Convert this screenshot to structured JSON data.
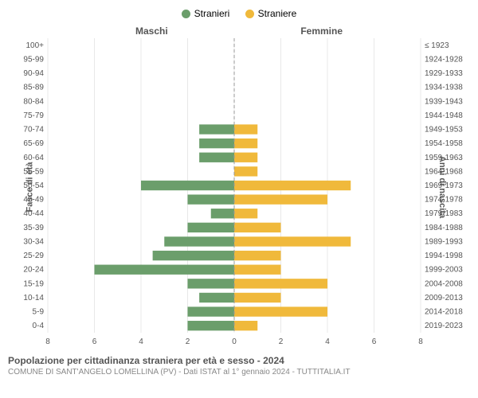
{
  "legend": {
    "male": {
      "label": "Stranieri",
      "color": "#6b9e6b"
    },
    "female": {
      "label": "Straniere",
      "color": "#f0b93b"
    }
  },
  "columns": {
    "left_header": "Maschi",
    "right_header": "Femmine"
  },
  "axis": {
    "left_label": "Fasce di età",
    "right_label": "Anni di nascita",
    "xmax": 8,
    "ticks": [
      8,
      6,
      4,
      2,
      0,
      2,
      4,
      6,
      8
    ]
  },
  "style": {
    "grid_color": "#e8e8e8",
    "center_line_color": "#999",
    "center_line_dash": "4,3",
    "bar_height_ratio": 0.7,
    "background": "#ffffff",
    "tick_font": 10,
    "row_font": 10
  },
  "rows": [
    {
      "age": "100+",
      "birth": "≤ 1923",
      "m": 0,
      "f": 0
    },
    {
      "age": "95-99",
      "birth": "1924-1928",
      "m": 0,
      "f": 0
    },
    {
      "age": "90-94",
      "birth": "1929-1933",
      "m": 0,
      "f": 0
    },
    {
      "age": "85-89",
      "birth": "1934-1938",
      "m": 0,
      "f": 0
    },
    {
      "age": "80-84",
      "birth": "1939-1943",
      "m": 0,
      "f": 0
    },
    {
      "age": "75-79",
      "birth": "1944-1948",
      "m": 0,
      "f": 0
    },
    {
      "age": "70-74",
      "birth": "1949-1953",
      "m": 1.5,
      "f": 1
    },
    {
      "age": "65-69",
      "birth": "1954-1958",
      "m": 1.5,
      "f": 1
    },
    {
      "age": "60-64",
      "birth": "1959-1963",
      "m": 1.5,
      "f": 1
    },
    {
      "age": "55-59",
      "birth": "1964-1968",
      "m": 0,
      "f": 1
    },
    {
      "age": "50-54",
      "birth": "1969-1973",
      "m": 4,
      "f": 5
    },
    {
      "age": "45-49",
      "birth": "1974-1978",
      "m": 2,
      "f": 4
    },
    {
      "age": "40-44",
      "birth": "1979-1983",
      "m": 1,
      "f": 1
    },
    {
      "age": "35-39",
      "birth": "1984-1988",
      "m": 2,
      "f": 2
    },
    {
      "age": "30-34",
      "birth": "1989-1993",
      "m": 3,
      "f": 5
    },
    {
      "age": "25-29",
      "birth": "1994-1998",
      "m": 3.5,
      "f": 2
    },
    {
      "age": "20-24",
      "birth": "1999-2003",
      "m": 6,
      "f": 2
    },
    {
      "age": "15-19",
      "birth": "2004-2008",
      "m": 2,
      "f": 4
    },
    {
      "age": "10-14",
      "birth": "2009-2013",
      "m": 1.5,
      "f": 2
    },
    {
      "age": "5-9",
      "birth": "2014-2018",
      "m": 2,
      "f": 4
    },
    {
      "age": "0-4",
      "birth": "2019-2023",
      "m": 2,
      "f": 1
    }
  ],
  "title": "Popolazione per cittadinanza straniera per età e sesso - 2024",
  "subtitle": "COMUNE DI SANT'ANGELO LOMELLINA (PV) - Dati ISTAT al 1° gennaio 2024 - TUTTITALIA.IT"
}
